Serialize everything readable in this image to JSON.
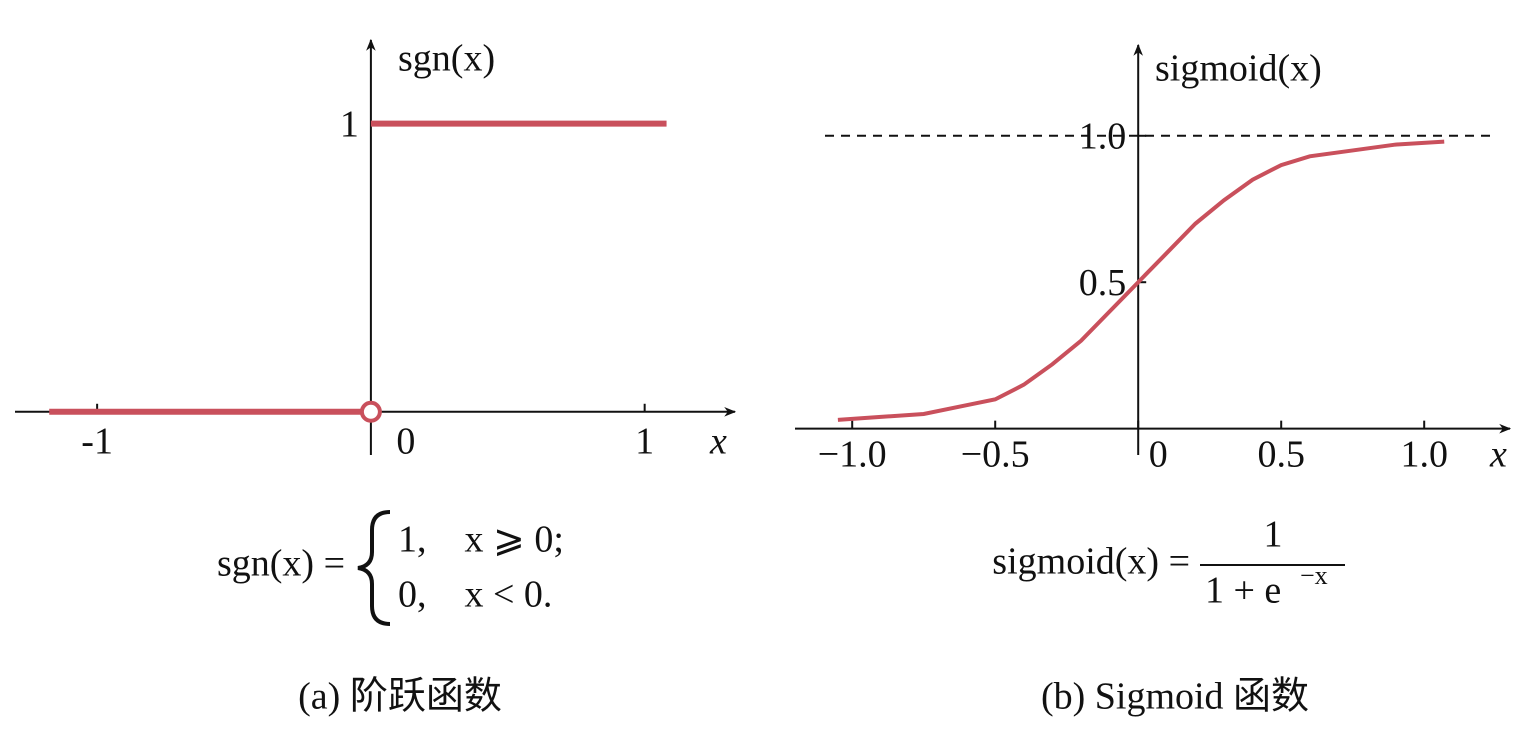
{
  "chart_data": [
    {
      "type": "line",
      "ylabel": "sgn(x)",
      "xlabel": "x",
      "x": [
        -1.175,
        0,
        0,
        0,
        1.08
      ],
      "series": [
        {
          "color": "#c9505c",
          "values": [
            0,
            0,
            null,
            1,
            1
          ]
        }
      ],
      "open_marker": {
        "x": 0,
        "y": 0
      },
      "xlim": [
        -1.3,
        1.33
      ],
      "ylim": [
        -0.15,
        1.29
      ],
      "xticks": [
        -1,
        0,
        1
      ],
      "yticks": [
        1
      ],
      "formula_lhs": "sgn(x) =",
      "formula_cases": [
        "1,    x ⩾ 0;",
        "0,    x < 0."
      ],
      "caption": "(a) 阶跃函数"
    },
    {
      "type": "line",
      "ylabel": "sigmoid(x)",
      "xlabel": "x",
      "x": [
        -1.05,
        -0.9,
        -0.75,
        -0.6,
        -0.5,
        -0.4,
        -0.3,
        -0.2,
        -0.1,
        0,
        0.1,
        0.2,
        0.3,
        0.4,
        0.5,
        0.6,
        0.75,
        0.9,
        1.07
      ],
      "series": [
        {
          "color": "#c9505c",
          "values": [
            0.03,
            0.04,
            0.05,
            0.08,
            0.1,
            0.15,
            0.22,
            0.3,
            0.4,
            0.5,
            0.6,
            0.7,
            0.78,
            0.85,
            0.9,
            0.93,
            0.95,
            0.97,
            0.98
          ]
        }
      ],
      "reference_line": {
        "y": 1,
        "dashed": true
      },
      "xlim": [
        -1.2,
        1.3
      ],
      "ylim": [
        -0.09,
        1.31
      ],
      "xticks": [
        {
          "value": -1,
          "label": "−1.0"
        },
        {
          "value": -0.5,
          "label": "−0.5"
        },
        0,
        0.5,
        {
          "value": 1,
          "label": "1.0"
        }
      ],
      "yticks": [
        0.5,
        {
          "value": 1,
          "label": "1.0"
        }
      ],
      "formula_lhs": "sigmoid(x) =",
      "formula_numerator": "1",
      "formula_denominator": "1 + e",
      "formula_exponent": "−x",
      "caption": "(b) Sigmoid 函数"
    }
  ]
}
